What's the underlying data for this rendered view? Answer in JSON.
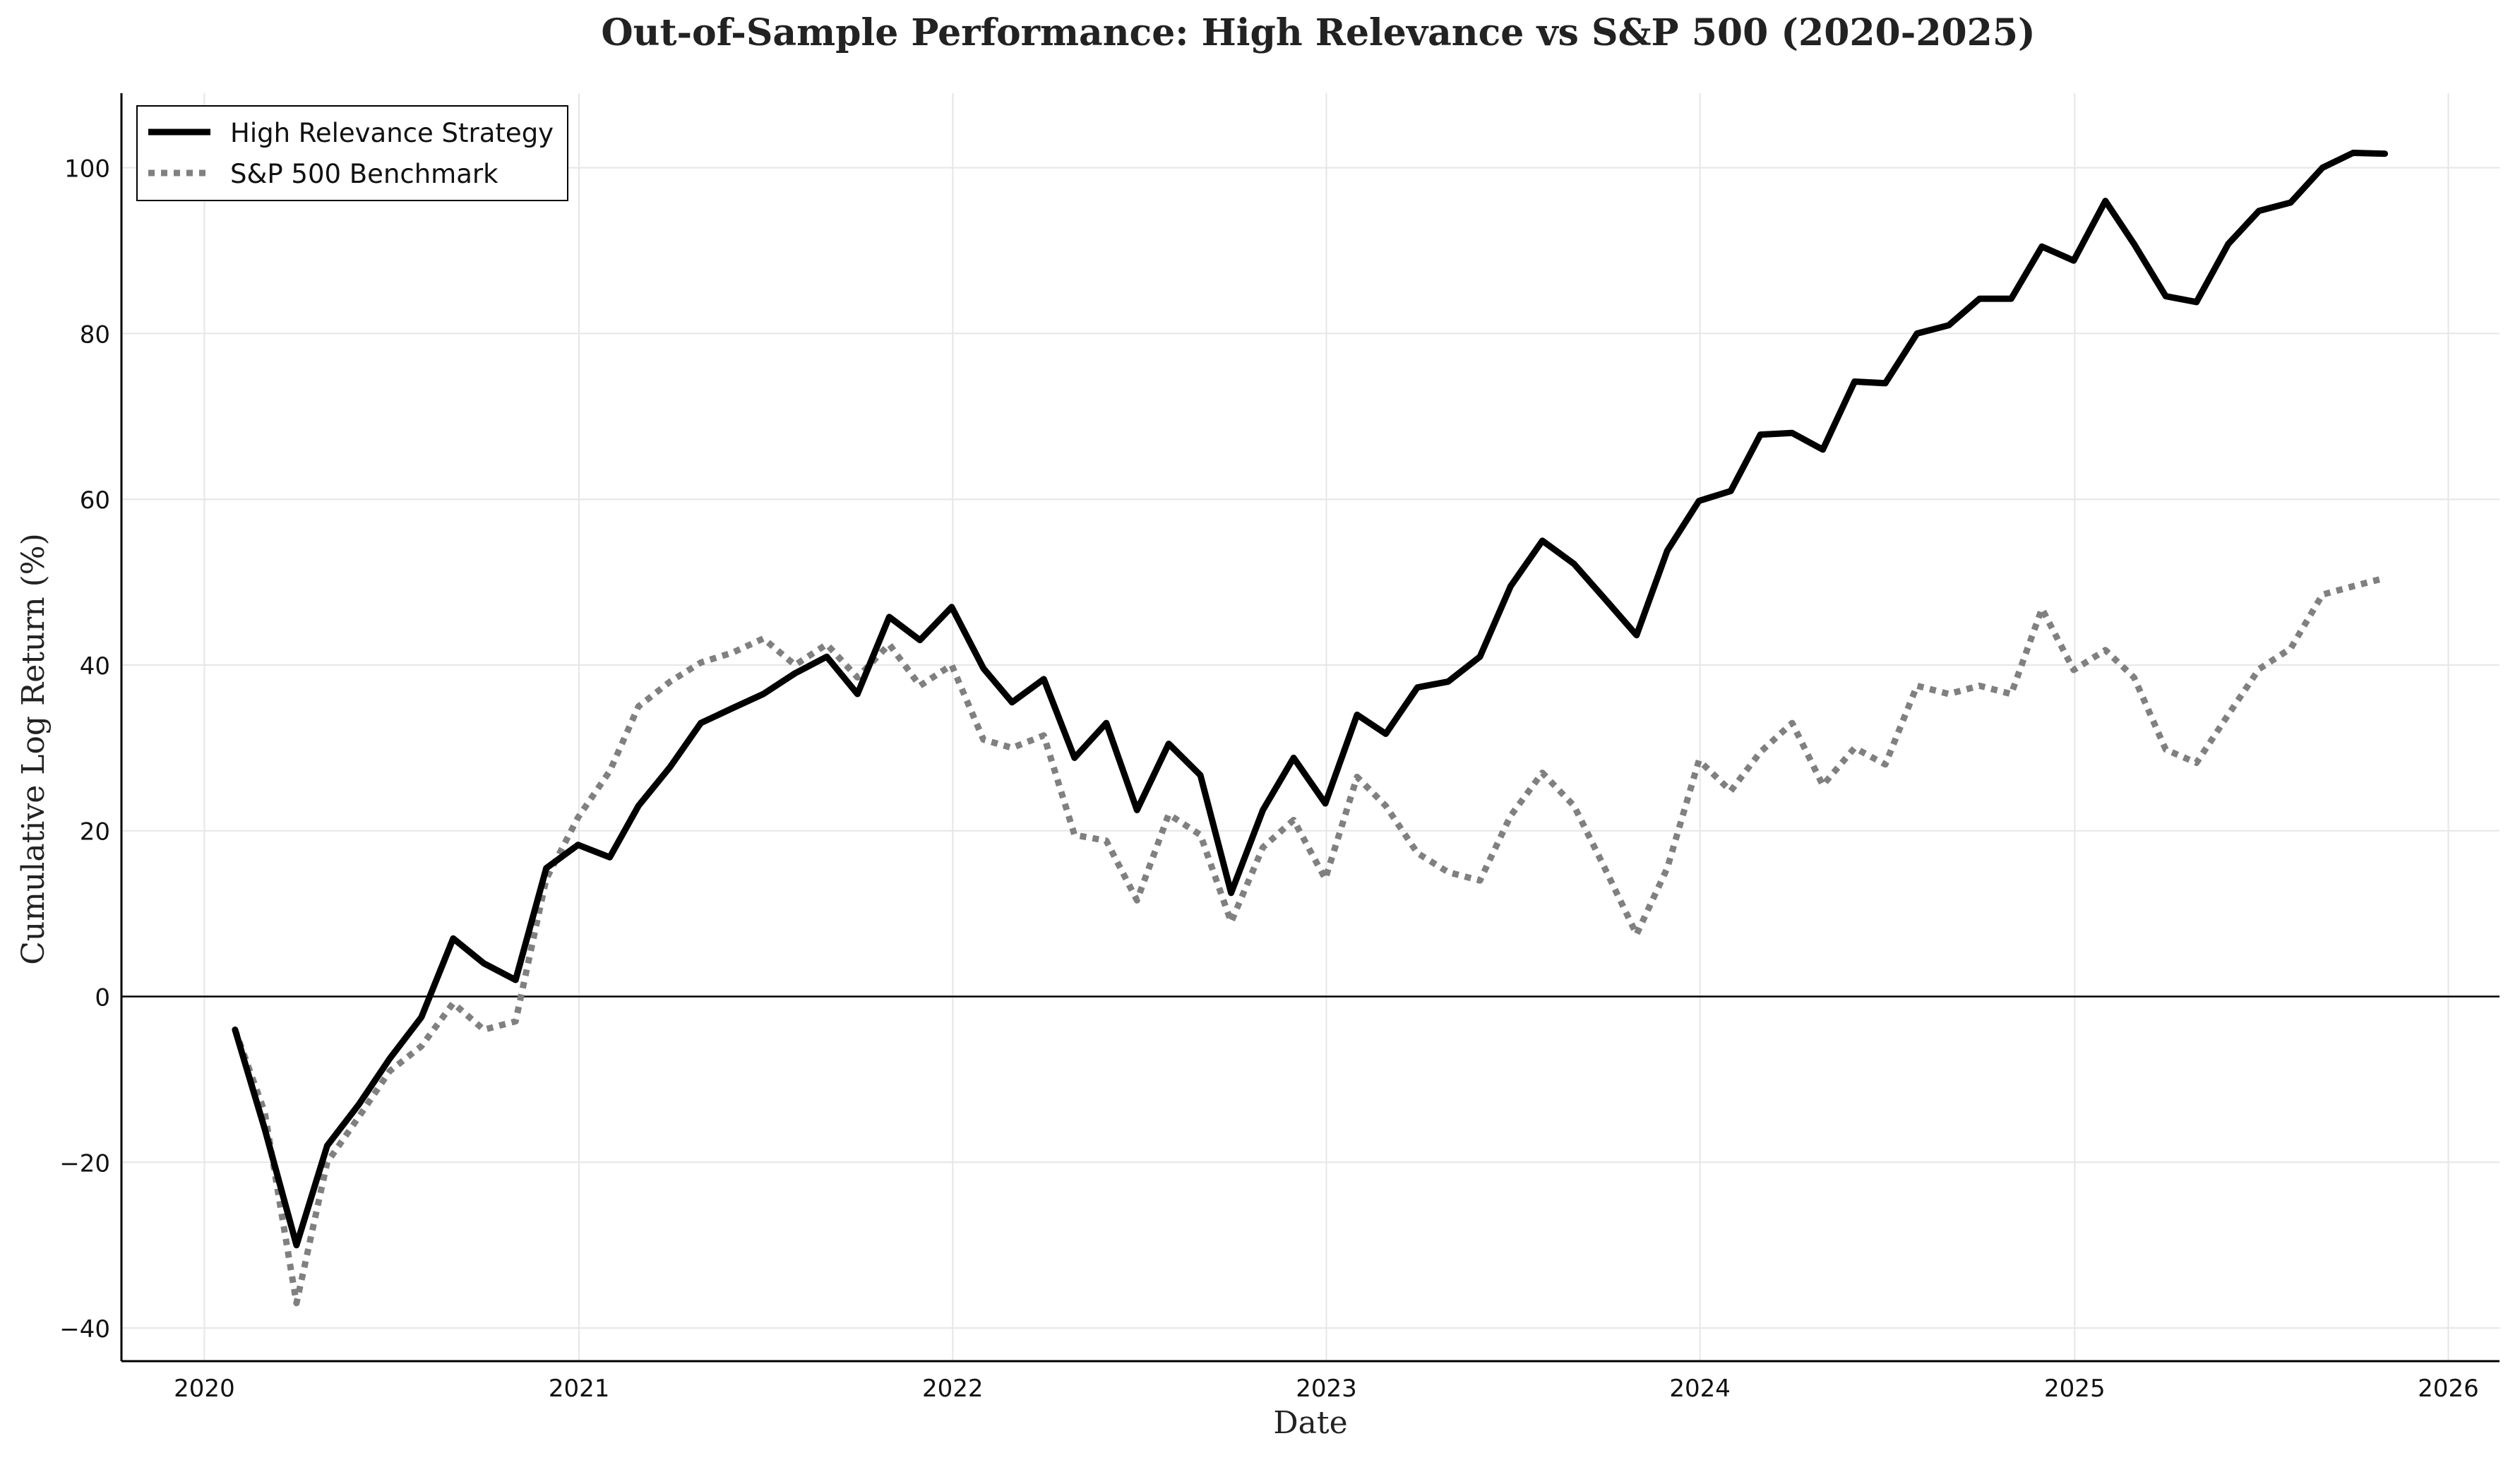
{
  "chart_data": {
    "type": "line",
    "title": "Out-of-Sample Performance: High Relevance vs S&P 500 (2020-2025)",
    "xlabel": "Date",
    "ylabel": "Cumulative Log Return (%)",
    "xlim": [
      "2019-10-12",
      "2026-02-20"
    ],
    "ylim": [
      -44,
      109
    ],
    "x_ticks": [
      "2020",
      "2021",
      "2022",
      "2023",
      "2024",
      "2025",
      "2026"
    ],
    "y_ticks": [
      -40,
      -20,
      0,
      20,
      40,
      60,
      80,
      100
    ],
    "grid": true,
    "zero_line": true,
    "legend": {
      "position": "top-left",
      "entries": [
        "High Relevance Strategy",
        "S&P 500 Benchmark"
      ]
    },
    "x": [
      "2020-01-31",
      "2020-02-29",
      "2020-03-31",
      "2020-04-30",
      "2020-05-31",
      "2020-06-30",
      "2020-07-31",
      "2020-08-31",
      "2020-09-30",
      "2020-10-31",
      "2020-11-30",
      "2020-12-31",
      "2021-01-31",
      "2021-02-28",
      "2021-03-31",
      "2021-04-30",
      "2021-05-31",
      "2021-06-30",
      "2021-07-31",
      "2021-08-31",
      "2021-09-30",
      "2021-10-31",
      "2021-11-30",
      "2021-12-31",
      "2022-01-31",
      "2022-02-28",
      "2022-03-31",
      "2022-04-30",
      "2022-05-31",
      "2022-06-30",
      "2022-07-31",
      "2022-08-31",
      "2022-09-30",
      "2022-10-31",
      "2022-11-30",
      "2022-12-31",
      "2023-01-31",
      "2023-02-28",
      "2023-03-31",
      "2023-04-30",
      "2023-05-31",
      "2023-06-30",
      "2023-07-31",
      "2023-08-31",
      "2023-09-30",
      "2023-10-31",
      "2023-11-30",
      "2023-12-31",
      "2024-01-31",
      "2024-02-29",
      "2024-03-31",
      "2024-04-30",
      "2024-05-31",
      "2024-06-30",
      "2024-07-31",
      "2024-08-31",
      "2024-09-30",
      "2024-10-31",
      "2024-11-30",
      "2024-12-31",
      "2025-01-31",
      "2025-02-28",
      "2025-03-31",
      "2025-04-30",
      "2025-05-31",
      "2025-06-30",
      "2025-07-31",
      "2025-08-31",
      "2025-09-30",
      "2025-10-31"
    ],
    "series": [
      {
        "name": "High Relevance Strategy",
        "color": "#000000",
        "style": "solid",
        "values": [
          -4,
          -16,
          -30,
          -18,
          -13,
          -7.5,
          -2.5,
          7,
          4,
          2,
          15.5,
          18.3,
          16.8,
          23,
          27.7,
          33,
          34.8,
          36.5,
          39,
          41,
          36.5,
          45.8,
          43,
          47,
          39.6,
          35.5,
          38.3,
          28.8,
          33,
          22.5,
          30.5,
          26.7,
          12.5,
          22.5,
          28.8,
          23.3,
          34,
          31.7,
          37.3,
          38,
          41,
          49.5,
          55,
          52.2,
          48,
          43.6,
          53.8,
          59.8,
          61,
          67.8,
          68,
          66,
          74.2,
          74,
          80,
          81,
          84.2,
          84.2,
          90.5,
          88.8,
          96,
          90.8,
          84.5,
          83.8,
          90.8,
          94.8,
          95.8,
          100,
          101.8,
          101.7
        ]
      },
      {
        "name": "S&P 500 Benchmark",
        "color": "#808080",
        "style": "dotted",
        "values": [
          -4,
          -14,
          -37,
          -20,
          -14.5,
          -9,
          -6,
          -0.8,
          -4,
          -3,
          14.2,
          21.6,
          27.2,
          35,
          38,
          40.3,
          41.5,
          43.2,
          40,
          42.5,
          38.5,
          42.5,
          37.5,
          40,
          31,
          30,
          31.5,
          19.5,
          18.8,
          11.6,
          22,
          19.5,
          9,
          18,
          21.3,
          14.2,
          26.5,
          23,
          17.3,
          15,
          14,
          21.8,
          27,
          23,
          15.5,
          7.5,
          15.5,
          28.5,
          24.8,
          29.5,
          33,
          25.5,
          30,
          28,
          37.5,
          36.5,
          37.5,
          36.5,
          46.8,
          39.4,
          41.8,
          38.5,
          29.8,
          28.2,
          34,
          39.5,
          42,
          48.5,
          49.5,
          50.5
        ]
      }
    ]
  }
}
